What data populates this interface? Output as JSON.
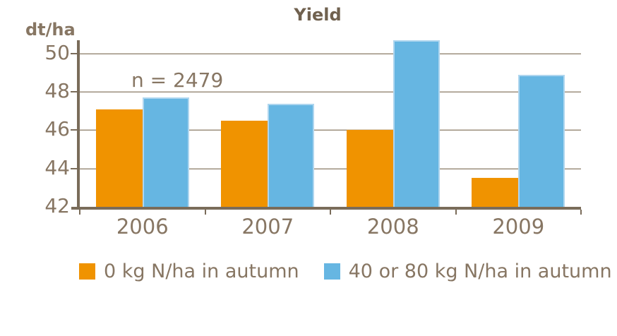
{
  "chart_data": {
    "type": "bar",
    "title": "Yield",
    "ylabel": "dt/ha",
    "annotation": "n = 2479",
    "categories": [
      "2006",
      "2007",
      "2008",
      "2009"
    ],
    "series": [
      {
        "name": "0 kg N/ha in autumn",
        "color": "#F09300",
        "values": [
          47.1,
          46.5,
          46.0,
          43.5
        ]
      },
      {
        "name": "40 or 80 kg N/ha in autumn",
        "color": "#66B6E2",
        "values": [
          47.7,
          47.4,
          50.7,
          48.9
        ]
      }
    ],
    "ylim": [
      42,
      50.7
    ],
    "y_ticks": [
      42,
      44,
      46,
      48,
      50
    ],
    "grid": "horizontal",
    "legend_position": "bottom",
    "axis_color": "#7A6C5A",
    "text_color": "#877663",
    "title_color": "#70614F",
    "background_color": "#FFFFFF"
  }
}
